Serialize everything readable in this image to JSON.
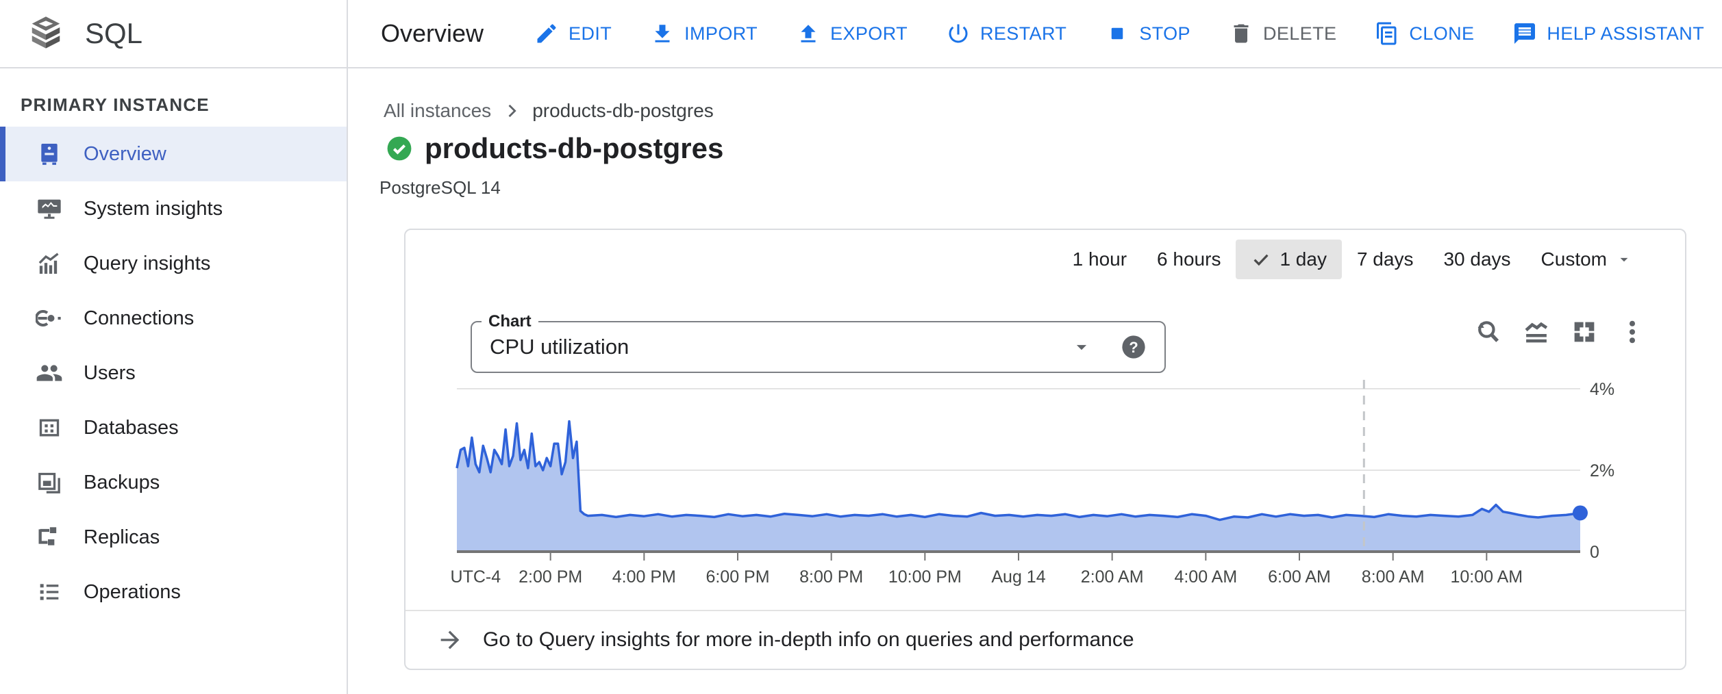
{
  "header": {
    "product": "SQL",
    "page_title": "Overview",
    "actions": [
      {
        "label": "EDIT",
        "icon": "edit-icon"
      },
      {
        "label": "IMPORT",
        "icon": "import-icon"
      },
      {
        "label": "EXPORT",
        "icon": "export-icon"
      },
      {
        "label": "RESTART",
        "icon": "restart-icon"
      },
      {
        "label": "STOP",
        "icon": "stop-icon"
      },
      {
        "label": "DELETE",
        "icon": "delete-icon",
        "disabled": true
      },
      {
        "label": "CLONE",
        "icon": "clone-icon"
      },
      {
        "label": "HELP ASSISTANT",
        "icon": "help-assistant-icon"
      }
    ]
  },
  "sidebar": {
    "section_title": "PRIMARY INSTANCE",
    "items": [
      {
        "label": "Overview",
        "icon": "instance-overview-icon",
        "active": true
      },
      {
        "label": "System insights",
        "icon": "system-insights-icon"
      },
      {
        "label": "Query insights",
        "icon": "query-insights-icon"
      },
      {
        "label": "Connections",
        "icon": "connections-icon"
      },
      {
        "label": "Users",
        "icon": "users-icon"
      },
      {
        "label": "Databases",
        "icon": "databases-icon"
      },
      {
        "label": "Backups",
        "icon": "backups-icon"
      },
      {
        "label": "Replicas",
        "icon": "replicas-icon"
      },
      {
        "label": "Operations",
        "icon": "operations-icon"
      }
    ]
  },
  "breadcrumb": {
    "parent": "All instances",
    "current": "products-db-postgres"
  },
  "instance": {
    "name": "products-db-postgres",
    "engine": "PostgreSQL 14",
    "status": "healthy"
  },
  "metrics_card": {
    "time_ranges": [
      {
        "label": "1 hour"
      },
      {
        "label": "6 hours"
      },
      {
        "label": "1 day",
        "selected": true
      },
      {
        "label": "7 days"
      },
      {
        "label": "30 days"
      },
      {
        "label": "Custom",
        "dropdown": true
      }
    ],
    "chart_select": {
      "label": "Chart",
      "value": "CPU utilization",
      "help_glyph": "?"
    },
    "toolbar_icons": [
      "zoom-reset",
      "area-chart-toggle",
      "fullscreen",
      "more-options"
    ],
    "footer_link": "Go to Query insights for more in-depth info on queries and performance"
  },
  "chart_data": {
    "type": "area",
    "title": "CPU utilization",
    "unit": "percent",
    "ylim": [
      0,
      4.3
    ],
    "x_span_hours": 24,
    "grid": true,
    "y_ticks": [
      {
        "v": 4,
        "label": "4%"
      },
      {
        "v": 2,
        "label": "2%"
      },
      {
        "v": 0,
        "label": "0"
      }
    ],
    "x_ticks": [
      {
        "t": 0.4,
        "label": "UTC-4",
        "tick": false
      },
      {
        "t": 2,
        "label": "2:00 PM",
        "tick": true
      },
      {
        "t": 4,
        "label": "4:00 PM",
        "tick": true
      },
      {
        "t": 6,
        "label": "6:00 PM",
        "tick": true
      },
      {
        "t": 8,
        "label": "8:00 PM",
        "tick": true
      },
      {
        "t": 10,
        "label": "10:00 PM",
        "tick": true
      },
      {
        "t": 12,
        "label": "Aug 14",
        "tick": true
      },
      {
        "t": 14,
        "label": "2:00 AM",
        "tick": true
      },
      {
        "t": 16,
        "label": "4:00 AM",
        "tick": true
      },
      {
        "t": 18,
        "label": "6:00 AM",
        "tick": true
      },
      {
        "t": 20,
        "label": "8:00 AM",
        "tick": true
      },
      {
        "t": 22,
        "label": "10:00 AM",
        "tick": true
      }
    ],
    "cursor_line_t": 19.38,
    "end_marker": true,
    "points": [
      [
        0,
        2.05
      ],
      [
        0.08,
        2.5
      ],
      [
        0.16,
        2.55
      ],
      [
        0.24,
        2.1
      ],
      [
        0.32,
        2.8
      ],
      [
        0.4,
        2.15
      ],
      [
        0.48,
        1.95
      ],
      [
        0.56,
        2.6
      ],
      [
        0.64,
        2.3
      ],
      [
        0.72,
        1.95
      ],
      [
        0.8,
        2.5
      ],
      [
        0.88,
        2.35
      ],
      [
        0.96,
        2.15
      ],
      [
        1.04,
        3.0
      ],
      [
        1.12,
        2.1
      ],
      [
        1.2,
        2.35
      ],
      [
        1.28,
        3.15
      ],
      [
        1.36,
        2.25
      ],
      [
        1.44,
        2.5
      ],
      [
        1.52,
        2.05
      ],
      [
        1.6,
        2.9
      ],
      [
        1.68,
        2.1
      ],
      [
        1.76,
        2.2
      ],
      [
        1.84,
        2.0
      ],
      [
        1.92,
        2.3
      ],
      [
        2.0,
        2.1
      ],
      [
        2.08,
        2.65
      ],
      [
        2.16,
        2.65
      ],
      [
        2.24,
        1.9
      ],
      [
        2.32,
        2.2
      ],
      [
        2.4,
        3.2
      ],
      [
        2.48,
        2.3
      ],
      [
        2.56,
        2.7
      ],
      [
        2.64,
        1.0
      ],
      [
        2.72,
        0.92
      ],
      [
        2.8,
        0.88
      ],
      [
        3.1,
        0.9
      ],
      [
        3.4,
        0.85
      ],
      [
        3.7,
        0.9
      ],
      [
        4.0,
        0.87
      ],
      [
        4.3,
        0.92
      ],
      [
        4.6,
        0.86
      ],
      [
        4.9,
        0.9
      ],
      [
        5.2,
        0.88
      ],
      [
        5.5,
        0.85
      ],
      [
        5.8,
        0.92
      ],
      [
        6.1,
        0.87
      ],
      [
        6.4,
        0.9
      ],
      [
        6.7,
        0.86
      ],
      [
        7.0,
        0.93
      ],
      [
        7.3,
        0.9
      ],
      [
        7.6,
        0.87
      ],
      [
        7.9,
        0.92
      ],
      [
        8.2,
        0.86
      ],
      [
        8.5,
        0.9
      ],
      [
        8.8,
        0.88
      ],
      [
        9.1,
        0.92
      ],
      [
        9.4,
        0.86
      ],
      [
        9.7,
        0.9
      ],
      [
        10.0,
        0.85
      ],
      [
        10.3,
        0.92
      ],
      [
        10.6,
        0.88
      ],
      [
        10.9,
        0.86
      ],
      [
        11.2,
        0.95
      ],
      [
        11.5,
        0.88
      ],
      [
        11.8,
        0.9
      ],
      [
        12.1,
        0.86
      ],
      [
        12.4,
        0.9
      ],
      [
        12.7,
        0.88
      ],
      [
        13.0,
        0.92
      ],
      [
        13.3,
        0.85
      ],
      [
        13.6,
        0.9
      ],
      [
        13.9,
        0.87
      ],
      [
        14.2,
        0.92
      ],
      [
        14.5,
        0.86
      ],
      [
        14.8,
        0.9
      ],
      [
        15.1,
        0.88
      ],
      [
        15.4,
        0.85
      ],
      [
        15.7,
        0.92
      ],
      [
        16.0,
        0.88
      ],
      [
        16.3,
        0.78
      ],
      [
        16.6,
        0.86
      ],
      [
        16.9,
        0.84
      ],
      [
        17.2,
        0.92
      ],
      [
        17.5,
        0.86
      ],
      [
        17.8,
        0.92
      ],
      [
        18.1,
        0.88
      ],
      [
        18.4,
        0.9
      ],
      [
        18.7,
        0.84
      ],
      [
        19.0,
        0.9
      ],
      [
        19.3,
        0.88
      ],
      [
        19.6,
        0.85
      ],
      [
        19.9,
        0.92
      ],
      [
        20.2,
        0.88
      ],
      [
        20.5,
        0.86
      ],
      [
        20.8,
        0.9
      ],
      [
        21.1,
        0.88
      ],
      [
        21.4,
        0.86
      ],
      [
        21.7,
        0.9
      ],
      [
        21.9,
        1.05
      ],
      [
        22.05,
        0.98
      ],
      [
        22.2,
        1.15
      ],
      [
        22.35,
        0.98
      ],
      [
        22.5,
        0.95
      ],
      [
        22.7,
        0.9
      ],
      [
        22.9,
        0.86
      ],
      [
        23.1,
        0.84
      ],
      [
        23.4,
        0.88
      ],
      [
        23.7,
        0.9
      ],
      [
        24,
        0.95
      ]
    ]
  },
  "colors": {
    "accent_blue": "#1a73e8",
    "disabled_gray": "#5f6368",
    "sidebar_active_blue": "#3e60c1",
    "sidebar_active_bg": "#e9eef8",
    "chart_line": "#2f62d9",
    "chart_fill": "#b1c5ef",
    "grid_line": "#e3e3e3",
    "axis_line": "#757575",
    "axis_text": "#444746",
    "cursor_dash": "#c3c6c9",
    "status_green": "#34a853",
    "selected_chip_bg": "#e4e4e4"
  }
}
